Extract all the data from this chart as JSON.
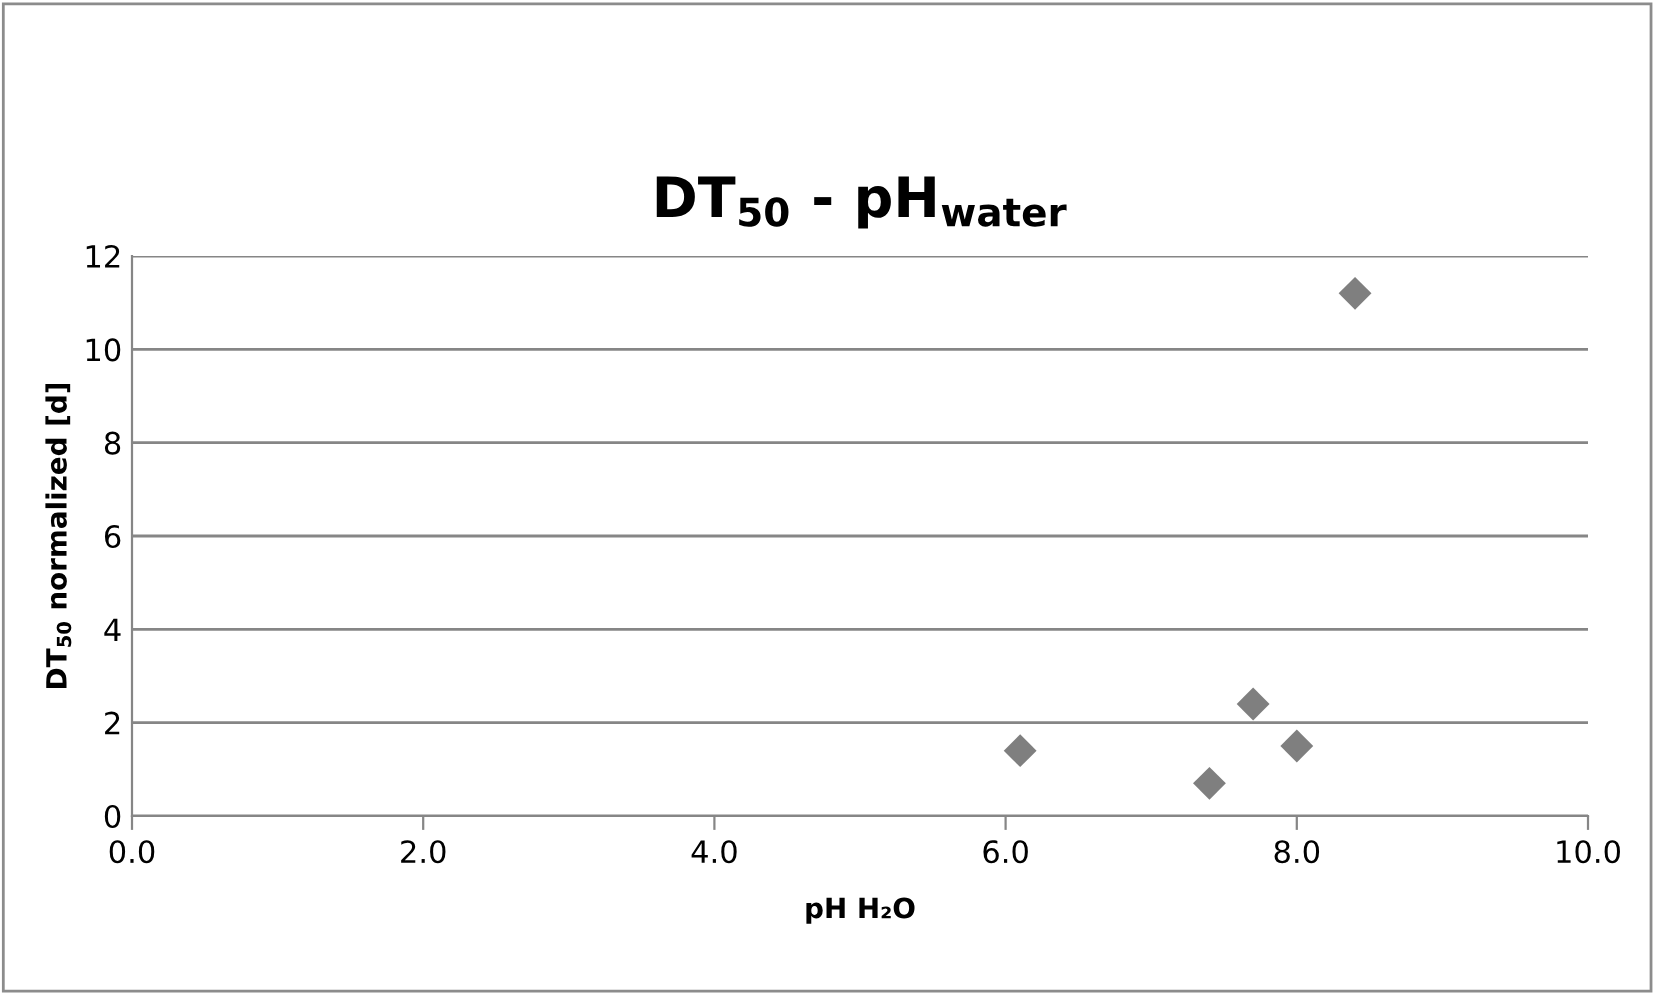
{
  "chart_data": {
    "type": "scatter",
    "title": "DT$_{50}$ - pH$_{water}$",
    "xlabel": "pH H₂O",
    "ylabel": "DT$_{50}$ normalized [d]",
    "x": [
      6.1,
      7.4,
      7.7,
      8.0,
      8.4
    ],
    "series": [
      {
        "color": "#7f7f7f",
        "values": [
          1.4,
          0.7,
          2.4,
          1.5,
          11.2
        ]
      }
    ],
    "marker": "diamond",
    "grid": "y",
    "xlim": [
      0,
      10
    ],
    "xticks": [
      {
        "value": 0,
        "label": "0.0"
      },
      {
        "value": 2,
        "label": "2.0"
      },
      {
        "value": 4,
        "label": "4.0"
      },
      {
        "value": 6,
        "label": "6.0"
      },
      {
        "value": 8,
        "label": "8.0"
      },
      {
        "value": 10,
        "label": "10.0"
      }
    ],
    "ylim": [
      0,
      12
    ],
    "yticks": [
      0,
      2,
      4,
      6,
      8,
      10,
      12
    ]
  }
}
